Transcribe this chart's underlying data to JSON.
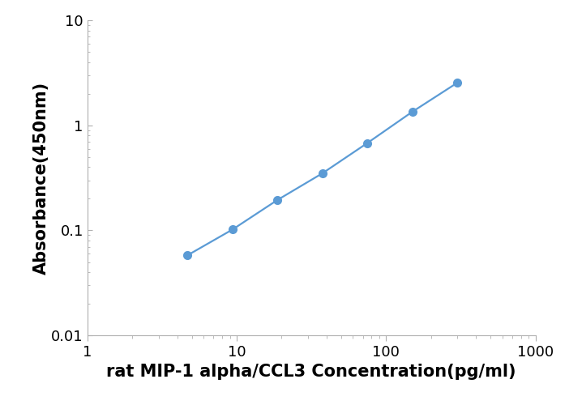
{
  "x": [
    4.69,
    9.38,
    18.75,
    37.5,
    75,
    150,
    300
  ],
  "y": [
    0.058,
    0.102,
    0.195,
    0.35,
    0.68,
    1.35,
    2.55
  ],
  "line_color": "#5B9BD5",
  "marker_color": "#5B9BD5",
  "marker_size": 8,
  "line_width": 1.6,
  "xlabel": "rat MIP-1 alpha/CCL3 Concentration(pg/ml)",
  "ylabel": "Absorbance(450nm)",
  "xlim": [
    1,
    1000
  ],
  "ylim": [
    0.01,
    10
  ],
  "xlabel_fontsize": 15,
  "ylabel_fontsize": 15,
  "tick_label_fontsize": 13,
  "background_color": "#ffffff",
  "spine_color": "#b0b0b0",
  "ytick_labels": [
    "0.01",
    "0.1",
    "1",
    "10"
  ],
  "ytick_values": [
    0.01,
    0.1,
    1,
    10
  ],
  "xtick_labels": [
    "1",
    "10",
    "100",
    "1000"
  ],
  "xtick_values": [
    1,
    10,
    100,
    1000
  ]
}
